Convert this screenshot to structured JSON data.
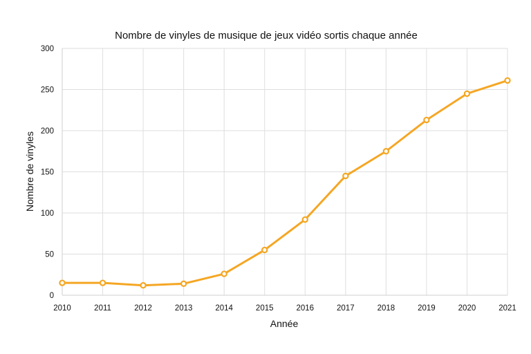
{
  "chart_data": {
    "type": "line",
    "title": "Nombre de vinyles de musique de jeux vidéo sortis chaque année",
    "xlabel": "Année",
    "ylabel": "Nombre de vinyles",
    "x": [
      "2010",
      "2011",
      "2012",
      "2013",
      "2014",
      "2015",
      "2016",
      "2017",
      "2018",
      "2019",
      "2020",
      "2021"
    ],
    "series": [
      {
        "values": [
          15,
          15,
          12,
          14,
          26,
          55,
          92,
          145,
          175,
          213,
          245,
          261
        ],
        "color": "#f5a623"
      }
    ],
    "ylim": [
      0,
      300
    ],
    "yticks": [
      "0",
      "50",
      "100",
      "150",
      "200",
      "250",
      "300"
    ],
    "grid": true,
    "legend": "none",
    "markers": "hollow-circle"
  }
}
